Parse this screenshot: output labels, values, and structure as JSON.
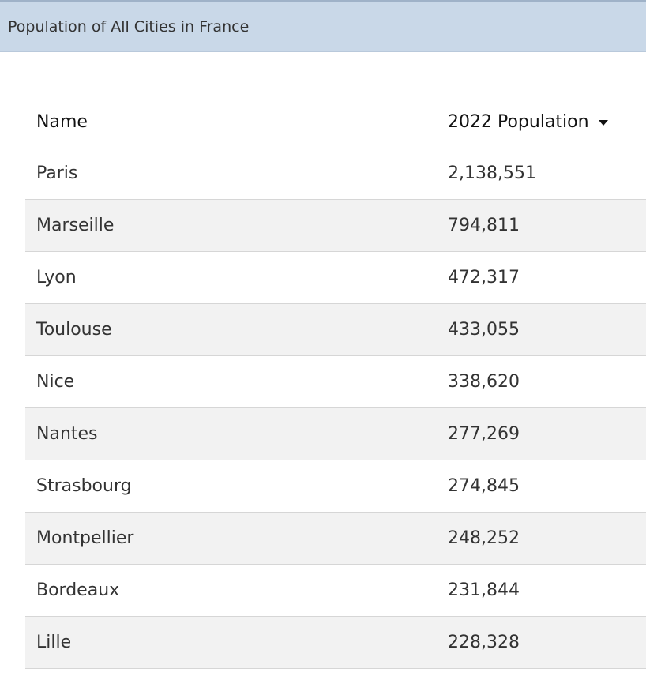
{
  "header": {
    "title": "Population of All Cities in France"
  },
  "table": {
    "columns": [
      "Name",
      "2022 Population"
    ],
    "sort_icon": "caret-down-icon",
    "rows": [
      {
        "name": "Paris",
        "population": "2,138,551"
      },
      {
        "name": "Marseille",
        "population": "794,811"
      },
      {
        "name": "Lyon",
        "population": "472,317"
      },
      {
        "name": "Toulouse",
        "population": "433,055"
      },
      {
        "name": "Nice",
        "population": "338,620"
      },
      {
        "name": "Nantes",
        "population": "277,269"
      },
      {
        "name": "Strasbourg",
        "population": "274,845"
      },
      {
        "name": "Montpellier",
        "population": "248,252"
      },
      {
        "name": "Bordeaux",
        "population": "231,844"
      },
      {
        "name": "Lille",
        "population": "228,328"
      }
    ]
  },
  "colors": {
    "header_bg": "#c9d8e8",
    "stripe_bg": "#f2f2f2",
    "row_border": "#d6d6d6"
  }
}
